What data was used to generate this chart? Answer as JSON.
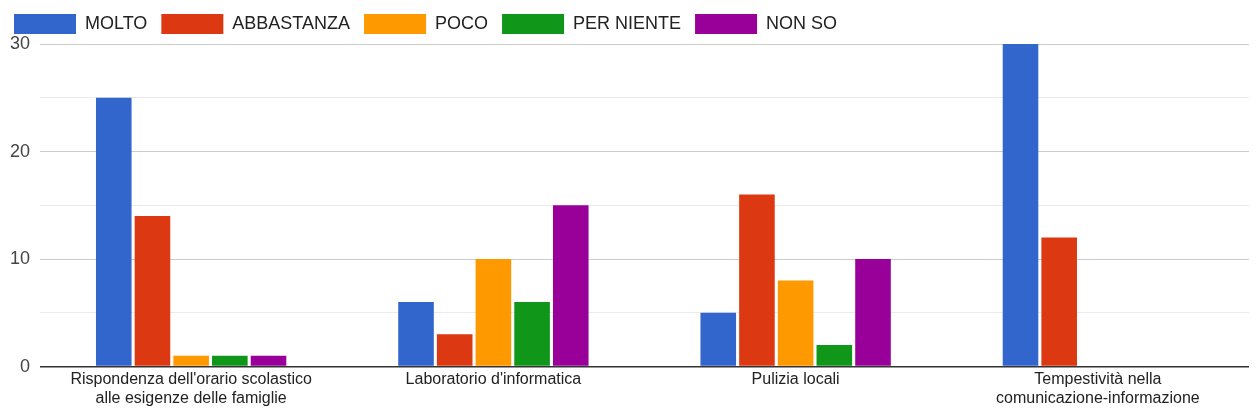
{
  "chart_data": {
    "type": "bar",
    "categories": [
      "Rispondenza dell'orario scolastico alle esigenze delle famiglie",
      "Laboratorio d'informatica",
      "Pulizia locali",
      "Tempestività nella comunicazione-informazione"
    ],
    "series": [
      {
        "name": "MOLTO",
        "color": "#3366cc",
        "values": [
          25,
          6,
          5,
          30
        ]
      },
      {
        "name": "ABBASTANZA",
        "color": "#dc3912",
        "values": [
          14,
          3,
          16,
          12
        ]
      },
      {
        "name": "POCO",
        "color": "#ff9900",
        "values": [
          1,
          10,
          8,
          0
        ]
      },
      {
        "name": "PER NIENTE",
        "color": "#109618",
        "values": [
          1,
          6,
          2,
          0
        ]
      },
      {
        "name": "NON SO",
        "color": "#990099",
        "values": [
          1,
          15,
          10,
          0
        ]
      }
    ],
    "ylim": [
      0,
      30
    ],
    "yticks": [
      0,
      {
        "value": 5,
        "label": null
      },
      10,
      {
        "value": 15,
        "label": null
      },
      20,
      {
        "value": 25,
        "label": null
      },
      30
    ],
    "grid": "y",
    "legend": "top left"
  }
}
